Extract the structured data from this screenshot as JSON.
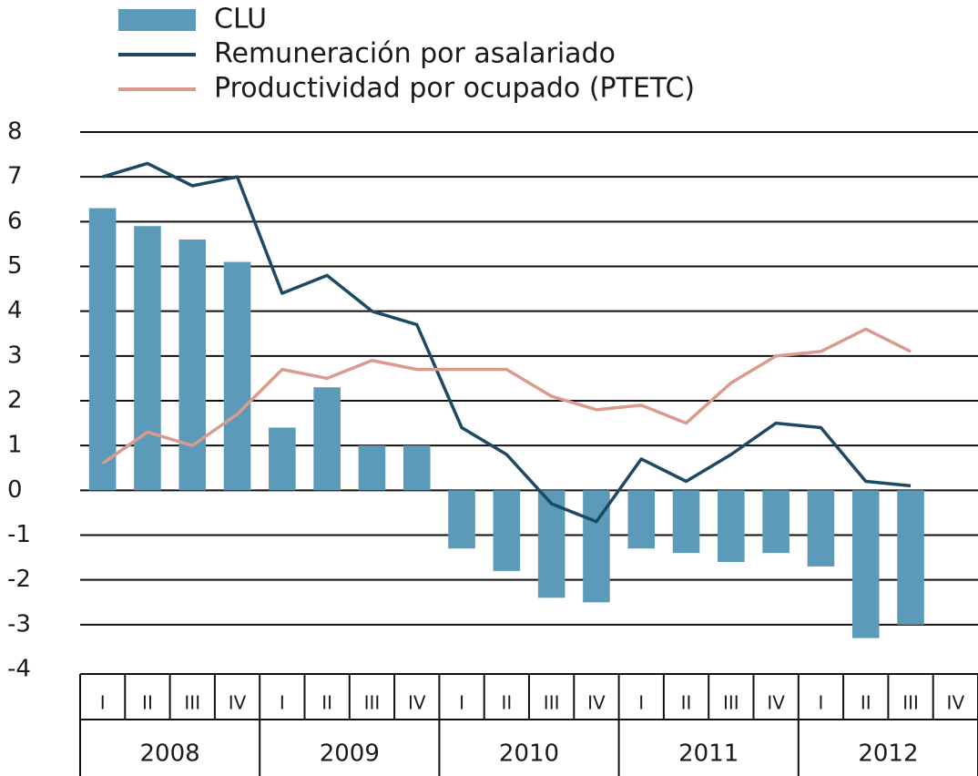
{
  "chart_data": {
    "type": "bar_line",
    "categories": [
      "I",
      "II",
      "III",
      "IV",
      "I",
      "II",
      "III",
      "IV",
      "I",
      "II",
      "III",
      "IV",
      "I",
      "II",
      "III",
      "IV",
      "I",
      "II",
      "III",
      "IV"
    ],
    "years": [
      "2008",
      "2009",
      "2010",
      "2011",
      "2012"
    ],
    "series": [
      {
        "name": "CLU",
        "type": "bar",
        "color": "#5b9ab8",
        "values": [
          6.3,
          5.9,
          5.6,
          5.1,
          1.4,
          2.3,
          1.0,
          1.0,
          -1.3,
          -1.8,
          -2.4,
          -2.5,
          -1.3,
          -1.4,
          -1.6,
          -1.4,
          -1.7,
          -3.3,
          -3.0,
          null
        ]
      },
      {
        "name": "Remuneración por asalariado",
        "type": "line",
        "color": "#1d4a63",
        "values": [
          7.0,
          7.3,
          6.8,
          7.0,
          4.4,
          4.8,
          4.0,
          3.7,
          1.4,
          0.8,
          -0.3,
          -0.7,
          0.7,
          0.2,
          0.8,
          1.5,
          1.4,
          0.2,
          0.1,
          null
        ]
      },
      {
        "name": "Productividad por ocupado (PTETC)",
        "type": "line",
        "color": "#d99a8f",
        "values": [
          0.6,
          1.3,
          1.0,
          1.7,
          2.7,
          2.5,
          2.9,
          2.7,
          2.7,
          2.7,
          2.1,
          1.8,
          1.9,
          1.5,
          2.4,
          3.0,
          3.1,
          3.6,
          3.1,
          null
        ]
      }
    ],
    "ylim": [
      -4,
      8
    ],
    "yticks": [
      -4,
      -3,
      -2,
      -1,
      0,
      1,
      2,
      3,
      4,
      5,
      6,
      7,
      8
    ],
    "grid": true
  }
}
